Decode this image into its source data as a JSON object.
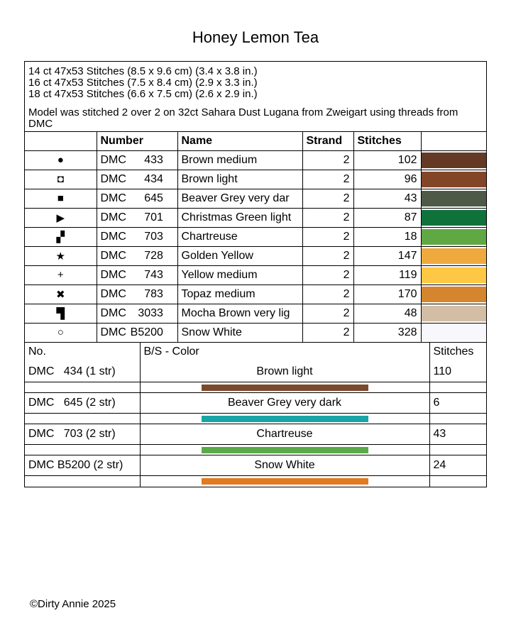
{
  "title": "Honey Lemon Tea",
  "info": {
    "sizes": [
      "14 ct 47x53 Stitches (8.5 x 9.6 cm) (3.4 x 3.8 in.)",
      "16 ct 47x53 Stitches (7.5 x 8.4 cm) (2.9 x 3.3 in.)",
      "18 ct 47x53 Stitches (6.6 x 7.5 cm) (2.6 x 2.9 in.)"
    ],
    "model": "Model was stitched 2 over 2 on 32ct Sahara Dust Lugana from Zweigart using threads from DMC"
  },
  "thread_table": {
    "headers": [
      "",
      "Number",
      "Name",
      "Strand",
      "Stitches",
      ""
    ],
    "rows": [
      {
        "symbol": "●",
        "icon": "filled-circle",
        "brand": "DMC",
        "number": "433",
        "name": "Brown medium",
        "strand": "2",
        "stitches": "102",
        "color": "#653a25"
      },
      {
        "symbol": "◘",
        "icon": "hollow-square",
        "brand": "DMC",
        "number": "434",
        "name": "Brown light",
        "strand": "2",
        "stitches": "96",
        "color": "#824626"
      },
      {
        "symbol": "■",
        "icon": "filled-square",
        "brand": "DMC",
        "number": "645",
        "name": "Beaver Grey very dar",
        "strand": "2",
        "stitches": "43",
        "color": "#4f5947"
      },
      {
        "symbol": "▶",
        "icon": "triangle-right",
        "brand": "DMC",
        "number": "701",
        "name": "Christmas Green light",
        "strand": "2",
        "stitches": "87",
        "color": "#0f723a"
      },
      {
        "symbol": "▞",
        "icon": "checker",
        "brand": "DMC",
        "number": "703",
        "name": "Chartreuse",
        "strand": "2",
        "stitches": "18",
        "color": "#60a844"
      },
      {
        "symbol": "★",
        "icon": "star",
        "brand": "DMC",
        "number": "728",
        "name": "Golden Yellow",
        "strand": "2",
        "stitches": "147",
        "color": "#efaa3f"
      },
      {
        "symbol": "+",
        "icon": "plus",
        "brand": "DMC",
        "number": "743",
        "name": "Yellow medium",
        "strand": "2",
        "stitches": "119",
        "color": "#fec744"
      },
      {
        "symbol": "✖",
        "icon": "x-mark",
        "brand": "DMC",
        "number": "783",
        "name": "Topaz medium",
        "strand": "2",
        "stitches": "170",
        "color": "#d4852e"
      },
      {
        "symbol": "▜",
        "icon": "corner",
        "brand": "DMC",
        "number": "3033",
        "name": "Mocha Brown very lig",
        "strand": "2",
        "stitches": "48",
        "color": "#d3bea5"
      },
      {
        "symbol": "○",
        "icon": "hollow-circle",
        "brand": "DMC",
        "number": "B5200",
        "name": "Snow White",
        "strand": "2",
        "stitches": "328",
        "color": "#f8f8fc"
      }
    ]
  },
  "backstitch_table": {
    "headers": [
      "No.",
      "B/S - Color",
      "Stitches"
    ],
    "rows": [
      {
        "no": "DMC   434 (1 str)",
        "name": "Brown light",
        "stitches": "110",
        "color": "#7a4a2c"
      },
      {
        "no": "DMC   645 (2 str)",
        "name": "Beaver Grey very dark",
        "stitches": "6",
        "color": "#19a5a5"
      },
      {
        "no": "DMC   703 (2 str)",
        "name": "Chartreuse",
        "stitches": "43",
        "color": "#5aaa48"
      },
      {
        "no": "DMC B5200 (2 str)",
        "name": "Snow White",
        "stitches": "24",
        "color": "#e27a22"
      }
    ]
  },
  "footer": "©Dirty Annie 2025"
}
